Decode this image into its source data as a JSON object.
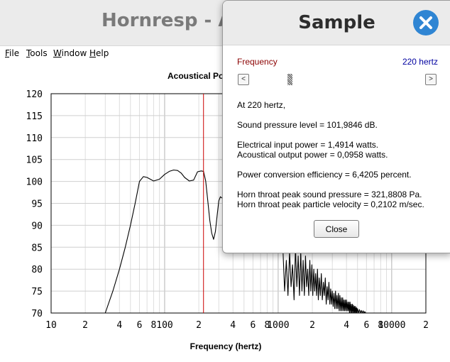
{
  "main_window": {
    "title": "Hornresp - Ac",
    "menu": [
      {
        "mnemonic": "F",
        "rest": "ile"
      },
      {
        "mnemonic": "T",
        "rest": "ools"
      },
      {
        "mnemonic": "W",
        "rest": "indow"
      },
      {
        "mnemonic": "H",
        "rest": "elp"
      }
    ]
  },
  "chart_data": {
    "type": "line",
    "title": "Acoustical Po",
    "xlabel": "Frequency (hertz)",
    "ylabel": "",
    "x_scale": "log",
    "xlim": [
      10,
      20000
    ],
    "ylim": [
      70,
      120
    ],
    "y_ticks": [
      120,
      115,
      110,
      105,
      100,
      95,
      90,
      85,
      80,
      75,
      70
    ],
    "x_ticks": [
      {
        "value": 10,
        "label": "10"
      },
      {
        "value": 20,
        "label": "2"
      },
      {
        "value": 40,
        "label": "4"
      },
      {
        "value": 60,
        "label": "6"
      },
      {
        "value": 80,
        "label": "8"
      },
      {
        "value": 100,
        "label": "100"
      },
      {
        "value": 200,
        "label": "2"
      },
      {
        "value": 400,
        "label": "4"
      },
      {
        "value": 600,
        "label": "6"
      },
      {
        "value": 800,
        "label": "8"
      },
      {
        "value": 1000,
        "label": "1000"
      },
      {
        "value": 2000,
        "label": "2"
      },
      {
        "value": 4000,
        "label": "4"
      },
      {
        "value": 6000,
        "label": "6"
      },
      {
        "value": 8000,
        "label": "8"
      },
      {
        "value": 10000,
        "label": "10000"
      },
      {
        "value": 20000,
        "label": "2"
      }
    ],
    "grid": true,
    "marker_frequency": 220,
    "marker_color": "#cc0000",
    "series": [
      {
        "color": "#000000",
        "x": [
          30,
          35,
          40,
          45,
          50,
          55,
          60,
          65,
          70,
          80,
          90,
          100,
          110,
          120,
          130,
          140,
          150,
          165,
          180,
          195,
          210,
          220,
          230,
          240,
          250,
          260,
          270,
          280,
          290,
          300,
          310,
          320
        ],
        "y": [
          70,
          75,
          80,
          85,
          90,
          95,
          100,
          101.1,
          100.9,
          100.1,
          100.5,
          101.6,
          102.3,
          102.6,
          102.5,
          101.9,
          100.9,
          100.1,
          100.3,
          102.2,
          102.4,
          102.3,
          100.1,
          95.5,
          91.1,
          88.2,
          86.8,
          88.6,
          92.2,
          95.6,
          96.5,
          96.2
        ]
      },
      {
        "color": "#000000",
        "x": [
          1100,
          1140,
          1180,
          1220,
          1260,
          1300,
          1340,
          1380,
          1420,
          1460,
          1500,
          1540,
          1580,
          1620,
          1660,
          1700,
          1740,
          1780,
          1820,
          1860,
          1900,
          1940,
          1980,
          2020,
          2060,
          2100,
          2140,
          2180,
          2220,
          2260,
          2300,
          2350,
          2400,
          2450,
          2500,
          2550,
          2600,
          2650,
          2700,
          2750,
          2800,
          2850,
          2900,
          2950,
          3000,
          3050,
          3100,
          3150,
          3200,
          3250,
          3300,
          3350,
          3400,
          3450,
          3500,
          3550,
          3600,
          3650,
          3700,
          3750,
          3800,
          3850,
          3900,
          3950,
          4000,
          4050,
          4100,
          4150,
          4200,
          4250,
          4300,
          4350,
          4400,
          4450,
          4500,
          4550,
          4600,
          4650,
          4700,
          4750,
          4800,
          4850,
          4900,
          4950,
          5000,
          5100,
          5200,
          5300,
          5400,
          5500,
          5600,
          5700,
          5800,
          5900,
          6000
        ],
        "y": [
          85,
          75,
          82,
          74,
          84,
          76,
          81,
          73,
          85,
          76,
          83,
          74,
          84,
          75,
          82,
          74,
          83,
          76,
          80,
          74,
          82,
          75,
          81,
          74,
          80,
          75,
          79,
          74,
          80,
          73,
          78,
          74,
          79,
          73,
          77,
          74,
          78,
          72,
          76,
          73,
          77,
          72,
          75.5,
          72,
          75,
          71.5,
          74.5,
          71,
          75,
          71,
          74,
          71,
          74.5,
          70.5,
          74,
          70.5,
          73.5,
          70.5,
          73.5,
          70.5,
          73,
          70.5,
          73,
          70.5,
          73,
          70.5,
          72.5,
          70.5,
          72.5,
          70,
          72.5,
          70,
          72,
          70,
          72,
          70,
          71.8,
          70,
          71.5,
          70,
          71.5,
          70,
          71.2,
          70,
          71,
          70,
          70.8,
          70,
          70.6,
          70,
          70.5,
          70,
          70.3,
          70,
          70
        ]
      }
    ]
  },
  "dialog": {
    "title": "Sample",
    "frequency_label": "Frequency",
    "frequency_value": "220 hertz",
    "slider_left_symbol": "<",
    "slider_right_symbol": ">",
    "lines": {
      "at": "At 220 hertz,",
      "spl": "Sound pressure level = 101,9846 dB.",
      "elec_power": "Electrical input power = 1,4914 watts.",
      "acoustic_power": "Acoustical output power = 0,0958 watts.",
      "efficiency": "Power conversion efficiency = 6,4205 percent.",
      "throat_pressure": "Horn throat peak sound pressure = 321,8808 Pa.",
      "throat_velocity": "Horn throat peak particle velocity = 0,2102 m/sec."
    },
    "close_label": "Close"
  },
  "colors": {
    "frequency_label": "#8b0000",
    "frequency_value": "#0000a0",
    "close_circle": "#2f85d3"
  }
}
